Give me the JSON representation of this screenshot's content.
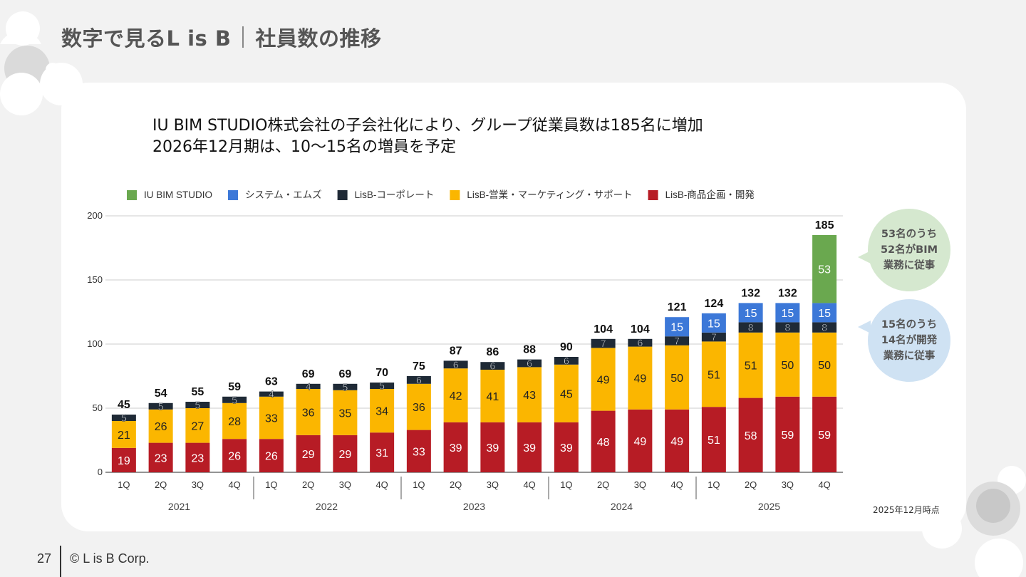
{
  "slide": {
    "title_main": "数字で見るL is B",
    "title_sub": "社員数の推移",
    "headline_1": "IU BIM STUDIO株式会社の子会社化により、グループ従業員数は185名に増加",
    "headline_2": "2026年12月期は、10～15名の増員を予定",
    "as_of": "2025年12月時点",
    "page_number": "27",
    "copyright": "© L is B Corp.",
    "bubble_green": [
      "53名のうち",
      "52名がBIM",
      "業務に従事"
    ],
    "bubble_blue": [
      "15名のうち",
      "14名が開発",
      "業務に従事"
    ]
  },
  "chart_data": {
    "type": "bar",
    "stacked": true,
    "categories": [
      "1Q",
      "2Q",
      "3Q",
      "4Q",
      "1Q",
      "2Q",
      "3Q",
      "4Q",
      "1Q",
      "2Q",
      "3Q",
      "4Q",
      "1Q",
      "2Q",
      "3Q",
      "4Q",
      "1Q",
      "2Q",
      "3Q",
      "4Q"
    ],
    "groups": [
      {
        "name": "2021",
        "count": 4
      },
      {
        "name": "2022",
        "count": 4
      },
      {
        "name": "2023",
        "count": 4
      },
      {
        "name": "2024",
        "count": 4
      },
      {
        "name": "2025",
        "count": 4
      }
    ],
    "series": [
      {
        "name": "LisB-商品企画・開発",
        "color": "#b71c25",
        "values": [
          19,
          23,
          23,
          26,
          26,
          29,
          29,
          31,
          33,
          39,
          39,
          39,
          39,
          48,
          49,
          49,
          51,
          58,
          59,
          59
        ]
      },
      {
        "name": "LisB-営業・マーケティング・サポート",
        "color": "#fbb600",
        "values": [
          21,
          26,
          27,
          28,
          33,
          36,
          35,
          34,
          36,
          42,
          41,
          43,
          45,
          49,
          49,
          50,
          51,
          51,
          50,
          50
        ]
      },
      {
        "name": "LisB-コーポレート",
        "color": "#1f2a36",
        "values": [
          5,
          5,
          5,
          5,
          4,
          4,
          5,
          5,
          6,
          6,
          6,
          6,
          6,
          7,
          6,
          7,
          7,
          8,
          8,
          8
        ]
      },
      {
        "name": "システム・エムズ",
        "color": "#3c78d8",
        "values": [
          0,
          0,
          0,
          0,
          0,
          0,
          0,
          0,
          0,
          0,
          0,
          0,
          0,
          0,
          0,
          15,
          15,
          15,
          15,
          15
        ]
      },
      {
        "name": "IU BIM STUDIO",
        "color": "#6aa84f",
        "values": [
          0,
          0,
          0,
          0,
          0,
          0,
          0,
          0,
          0,
          0,
          0,
          0,
          0,
          0,
          0,
          0,
          0,
          0,
          0,
          53
        ]
      }
    ],
    "legend_order": [
      "IU BIM STUDIO",
      "システム・エムズ",
      "LisB-コーポレート",
      "LisB-営業・マーケティング・サポート",
      "LisB-商品企画・開発"
    ],
    "totals": [
      45,
      54,
      55,
      59,
      63,
      69,
      69,
      70,
      75,
      87,
      86,
      88,
      90,
      104,
      104,
      121,
      124,
      132,
      132,
      185
    ],
    "yticks": [
      0,
      50,
      100,
      150,
      200
    ],
    "ylim": [
      0,
      200
    ],
    "grid": true,
    "legend_position": "top"
  }
}
